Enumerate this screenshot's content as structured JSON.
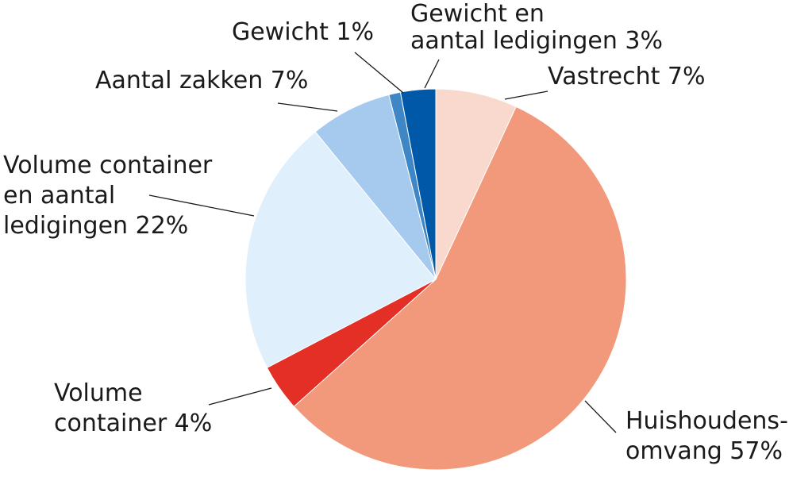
{
  "chart_data": {
    "type": "pie",
    "title": "",
    "unit": "%",
    "slices": [
      {
        "key": "vastrecht",
        "lines": [
          "Vastrecht 7%"
        ],
        "value": 7,
        "color": "#f9d8ce"
      },
      {
        "key": "huishoudensomvang",
        "lines": [
          "Huishoudens-",
          "omvang 57%"
        ],
        "value": 57,
        "color": "#f2997b"
      },
      {
        "key": "volume-container",
        "lines": [
          "Volume",
          "container 4%"
        ],
        "value": 4,
        "color": "#e32f25"
      },
      {
        "key": "volume-ledigingen",
        "lines": [
          "Volume container",
          "en aantal",
          "ledigingen 22%"
        ],
        "value": 22,
        "color": "#dfeffc"
      },
      {
        "key": "aantal-zakken",
        "lines": [
          "Aantal zakken 7%"
        ],
        "value": 7,
        "color": "#a6caee"
      },
      {
        "key": "gewicht",
        "lines": [
          "Gewicht  1%"
        ],
        "value": 1,
        "color": "#3f86c7"
      },
      {
        "key": "gewicht-ledigingen",
        "lines": [
          "Gewicht en",
          "aantal ledigingen 3%"
        ],
        "value": 3,
        "color": "#0059a8"
      }
    ]
  }
}
